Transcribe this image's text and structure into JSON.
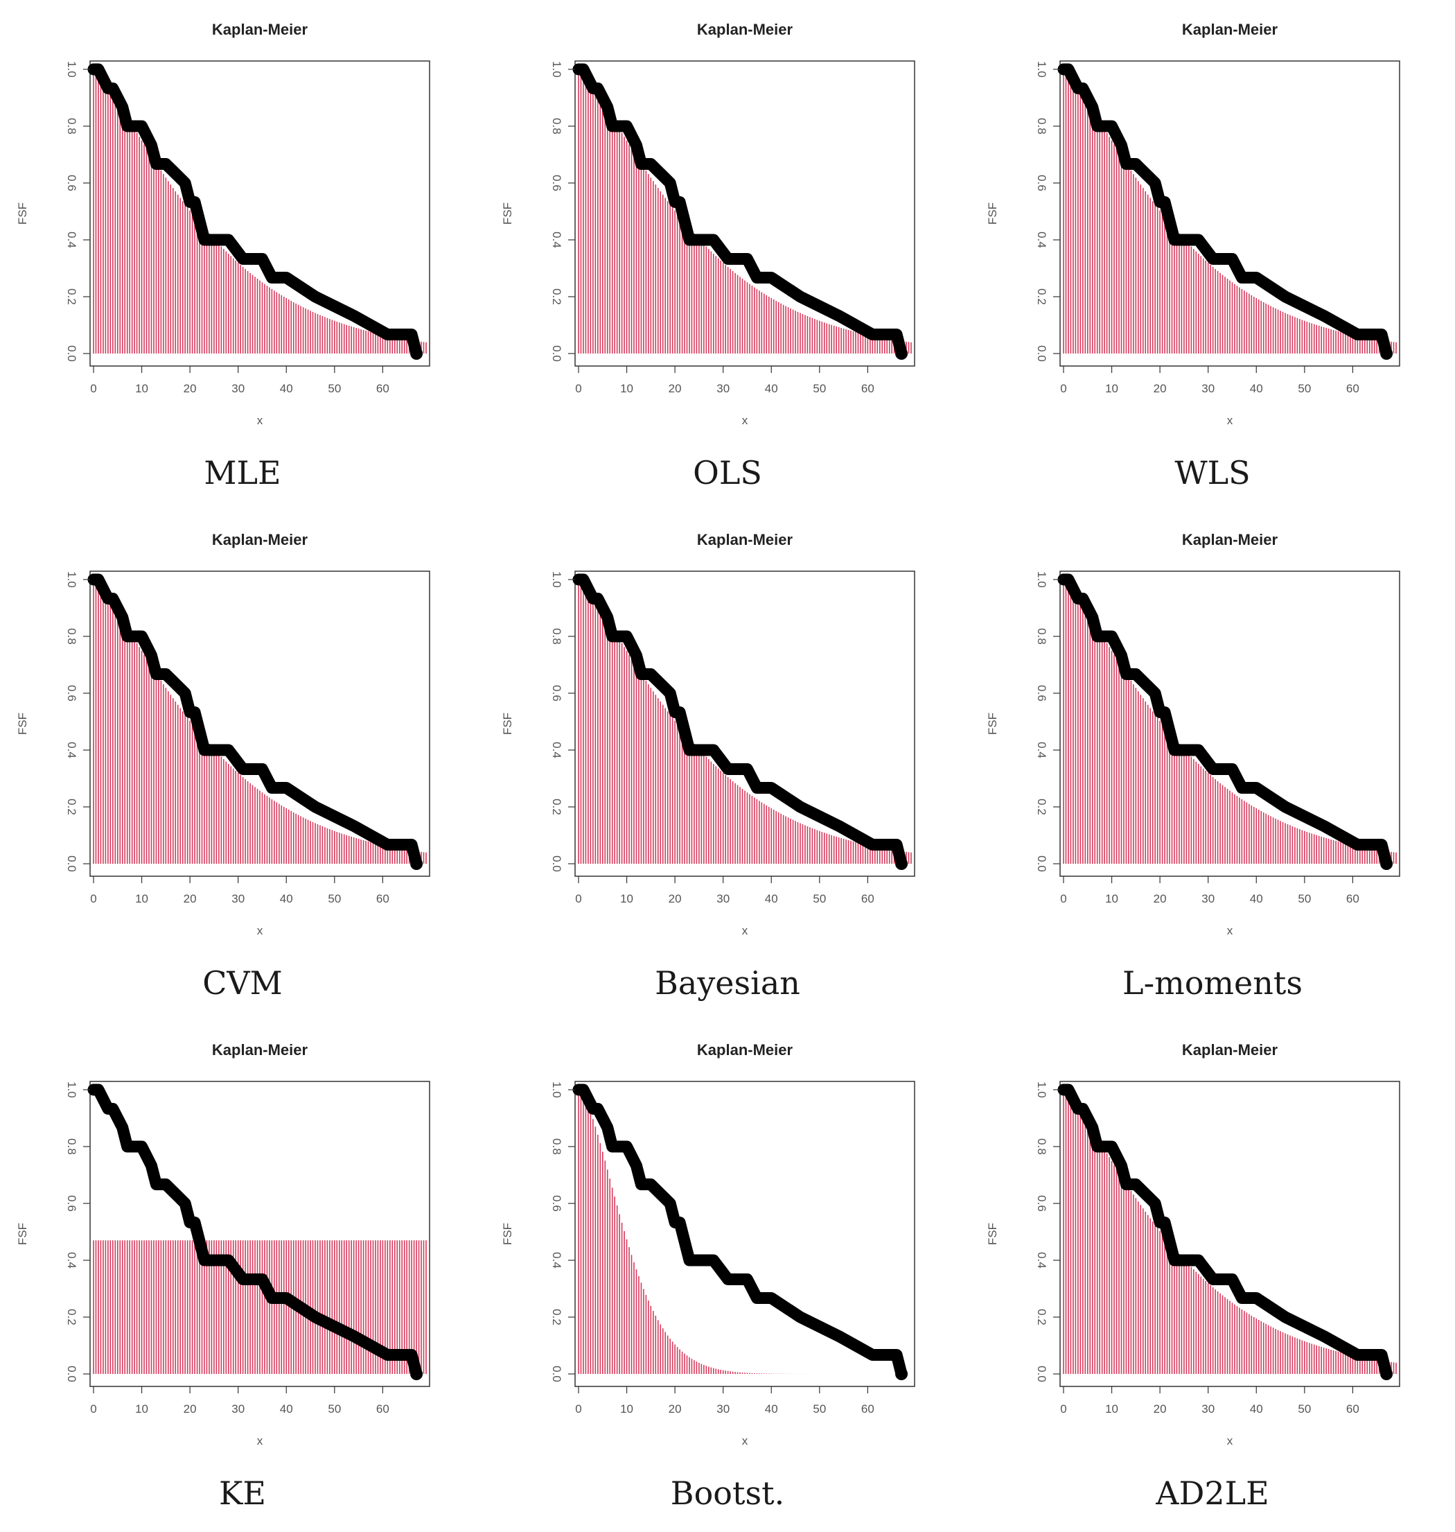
{
  "chart_data": [
    {
      "type": "bar",
      "method": "MLE",
      "title": "Kaplan-Meier",
      "xlabel": "x",
      "ylabel": "FSF",
      "fit_profile": "good",
      "xlim": [
        0,
        69
      ],
      "ylim": [
        0,
        1
      ],
      "xticks": [
        "0",
        "10",
        "20",
        "30",
        "40",
        "50",
        "60"
      ],
      "yticks": [
        "0.0",
        "0.2",
        "0.4",
        "0.6",
        "0.8",
        "1.0"
      ]
    },
    {
      "type": "bar",
      "method": "OLS",
      "title": "Kaplan-Meier",
      "xlabel": "x",
      "ylabel": "FSF",
      "fit_profile": "good",
      "xlim": [
        0,
        69
      ],
      "ylim": [
        0,
        1
      ],
      "xticks": [
        "0",
        "10",
        "20",
        "30",
        "40",
        "50",
        "60"
      ],
      "yticks": [
        "0.0",
        "0.2",
        "0.4",
        "0.6",
        "0.8",
        "1.0"
      ]
    },
    {
      "type": "bar",
      "method": "WLS",
      "title": "Kaplan-Meier",
      "xlabel": "x",
      "ylabel": "FSF",
      "fit_profile": "good",
      "xlim": [
        0,
        69
      ],
      "ylim": [
        0,
        1
      ],
      "xticks": [
        "0",
        "10",
        "20",
        "30",
        "40",
        "50",
        "60"
      ],
      "yticks": [
        "0.0",
        "0.2",
        "0.4",
        "0.6",
        "0.8",
        "1.0"
      ]
    },
    {
      "type": "bar",
      "method": "CVM",
      "title": "Kaplan-Meier",
      "xlabel": "x",
      "ylabel": "FSF",
      "fit_profile": "good",
      "xlim": [
        0,
        69
      ],
      "ylim": [
        0,
        1
      ],
      "xticks": [
        "0",
        "10",
        "20",
        "30",
        "40",
        "50",
        "60"
      ],
      "yticks": [
        "0.0",
        "0.2",
        "0.4",
        "0.6",
        "0.8",
        "1.0"
      ]
    },
    {
      "type": "bar",
      "method": "Bayesian",
      "title": "Kaplan-Meier",
      "xlabel": "x",
      "ylabel": "FSF",
      "fit_profile": "good",
      "xlim": [
        0,
        69
      ],
      "ylim": [
        0,
        1
      ],
      "xticks": [
        "0",
        "10",
        "20",
        "30",
        "40",
        "50",
        "60"
      ],
      "yticks": [
        "0.0",
        "0.2",
        "0.4",
        "0.6",
        "0.8",
        "1.0"
      ]
    },
    {
      "type": "bar",
      "method": "L-moments",
      "title": "Kaplan-Meier",
      "xlabel": "x",
      "ylabel": "FSF",
      "fit_profile": "good",
      "xlim": [
        0,
        69
      ],
      "ylim": [
        0,
        1
      ],
      "xticks": [
        "0",
        "10",
        "20",
        "30",
        "40",
        "50",
        "60"
      ],
      "yticks": [
        "0.0",
        "0.2",
        "0.4",
        "0.6",
        "0.8",
        "1.0"
      ]
    },
    {
      "type": "bar",
      "method": "KE",
      "title": "Kaplan-Meier",
      "xlabel": "x",
      "ylabel": "FSF",
      "fit_profile": "flat",
      "flat_level": 0.47,
      "xlim": [
        0,
        69
      ],
      "ylim": [
        0,
        1
      ],
      "xticks": [
        "0",
        "10",
        "20",
        "30",
        "40",
        "50",
        "60"
      ],
      "yticks": [
        "0.0",
        "0.2",
        "0.4",
        "0.6",
        "0.8",
        "1.0"
      ]
    },
    {
      "type": "bar",
      "method": "Bootst.",
      "title": "Kaplan-Meier",
      "xlabel": "x",
      "ylabel": "FSF",
      "fit_profile": "fast",
      "xlim": [
        0,
        69
      ],
      "ylim": [
        0,
        1
      ],
      "xticks": [
        "0",
        "10",
        "20",
        "30",
        "40",
        "50",
        "60"
      ],
      "yticks": [
        "0.0",
        "0.2",
        "0.4",
        "0.6",
        "0.8",
        "1.0"
      ]
    },
    {
      "type": "bar",
      "method": "AD2LE",
      "title": "Kaplan-Meier",
      "xlabel": "x",
      "ylabel": "FSF",
      "fit_profile": "good",
      "xlim": [
        0,
        69
      ],
      "ylim": [
        0,
        1
      ],
      "xticks": [
        "0",
        "10",
        "20",
        "30",
        "40",
        "50",
        "60"
      ],
      "yticks": [
        "0.0",
        "0.2",
        "0.4",
        "0.6",
        "0.8",
        "1.0"
      ]
    }
  ],
  "km_curve": {
    "x": [
      0,
      1,
      3,
      4,
      6,
      7,
      10,
      12,
      13,
      15,
      19,
      20,
      21,
      23,
      25,
      28,
      31,
      35,
      37,
      40,
      46,
      54,
      61,
      66,
      67
    ],
    "y": [
      1.0,
      1.0,
      0.933,
      0.933,
      0.867,
      0.8,
      0.8,
      0.733,
      0.667,
      0.667,
      0.6,
      0.533,
      0.533,
      0.4,
      0.4,
      0.4,
      0.333,
      0.333,
      0.267,
      0.267,
      0.2,
      0.133,
      0.067,
      0.067,
      0.0
    ]
  },
  "colors": {
    "fsf_bars": "#d6385a",
    "km_curve": "#000000",
    "axis": "#333333",
    "tick_text": "#555555"
  }
}
